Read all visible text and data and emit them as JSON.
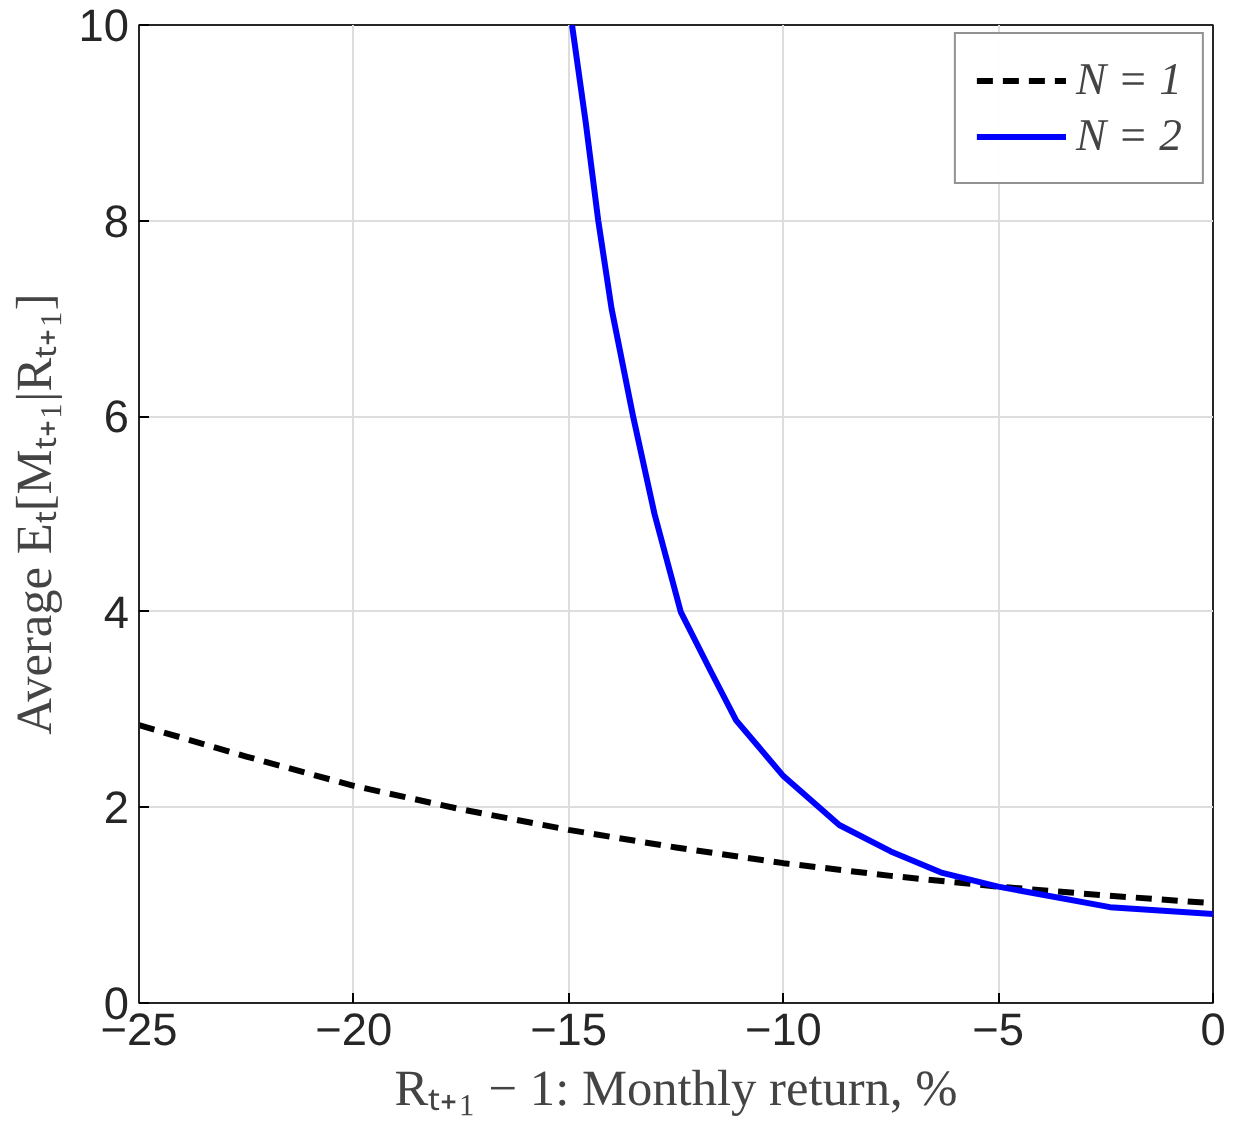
{
  "chart_data": {
    "type": "line",
    "xlabel": "Rₜ₊₁ − 1: Monthly return, %",
    "ylabel": "Average Eₜ[Mₜ₊₁|Rₜ₊₁]",
    "xlim": [
      -25,
      0
    ],
    "ylim": [
      0,
      10
    ],
    "xticks": [
      -25,
      -20,
      -15,
      -10,
      -5,
      0
    ],
    "yticks": [
      0,
      2,
      4,
      6,
      8,
      10
    ],
    "grid": true,
    "legend": "top right",
    "marker": "none",
    "series": [
      {
        "name": "N = 1",
        "color": "#000000",
        "line_style": "dashed",
        "x": [
          -25,
          -22.5,
          -20,
          -17.5,
          -15,
          -12.5,
          -10,
          -7.5,
          -5,
          -2.5,
          0
        ],
        "values": [
          2.84,
          2.52,
          2.22,
          1.98,
          1.77,
          1.59,
          1.43,
          1.3,
          1.19,
          1.1,
          1.02
        ]
      },
      {
        "name": "N = 2",
        "color": "#0000ff",
        "line_style": "solid",
        "x": [
          -14.92,
          -14.6,
          -14.31,
          -14,
          -13.5,
          -13,
          -12.39,
          -11.7,
          -11.1,
          -10,
          -8.7,
          -7.5,
          -6.3,
          -5,
          -2.4,
          0
        ],
        "values": [
          10,
          9,
          8,
          7.1,
          6,
          5,
          4,
          3.4,
          2.89,
          2.32,
          1.82,
          1.55,
          1.33,
          1.19,
          0.98,
          0.91
        ]
      }
    ]
  }
}
